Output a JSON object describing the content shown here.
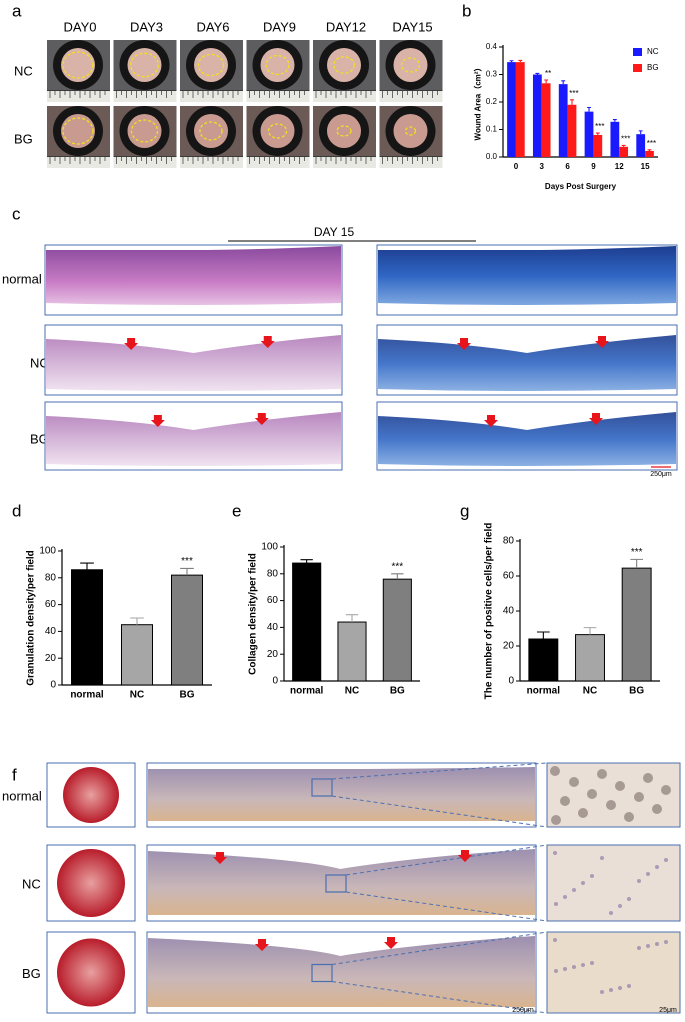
{
  "panels": {
    "a": {
      "label": "a",
      "columns": [
        "DAY0",
        "DAY3",
        "DAY6",
        "DAY9",
        "DAY12",
        "DAY15"
      ],
      "rows": [
        "NC",
        "BG"
      ]
    },
    "c": {
      "label": "c",
      "title": "DAY 15",
      "rows": [
        "normal",
        "NC",
        "BG"
      ],
      "scale_bar": "250μm"
    },
    "f": {
      "label": "f",
      "rows": [
        "normal",
        "NC",
        "BG"
      ],
      "scale_bars": [
        "250μm",
        "25μm"
      ]
    }
  },
  "chart_data": [
    {
      "type": "bar",
      "panel": "b",
      "y_label": "Wound Area（cm²）",
      "x_label": "Days Post Surgery",
      "categories": [
        "0",
        "3",
        "6",
        "9",
        "12",
        "15"
      ],
      "series": [
        {
          "name": "NC",
          "color": "#1a1aff",
          "values": [
            0.345,
            0.3,
            0.265,
            0.165,
            0.128,
            0.083
          ],
          "errors": [
            0.005,
            0.004,
            0.012,
            0.015,
            0.008,
            0.012
          ]
        },
        {
          "name": "BG",
          "color": "#ff1a1a",
          "values": [
            0.345,
            0.268,
            0.19,
            0.08,
            0.037,
            0.022
          ],
          "errors": [
            0.006,
            0.012,
            0.018,
            0.007,
            0.005,
            0.004
          ]
        }
      ],
      "significance": [
        null,
        "**",
        "***",
        "***",
        "***",
        "***"
      ],
      "significance_color": "#000000",
      "ylim": [
        0,
        0.4
      ],
      "yticks": [
        {
          "value": 0,
          "label": "0.0"
        },
        0.1,
        0.2,
        0.3,
        0.4
      ],
      "legend": "upper right"
    },
    {
      "type": "bar",
      "panel": "d",
      "y_label": "Granulation  density/per field",
      "categories": [
        "normal",
        "NC",
        "BG"
      ],
      "values": [
        86,
        45,
        82
      ],
      "errors": [
        5,
        5,
        5
      ],
      "colors": [
        "#000000",
        "#a6a6a6",
        "#7f7f7f"
      ],
      "significance": [
        null,
        null,
        "***"
      ],
      "significance_color": "#ff0000",
      "ylim": [
        0,
        100
      ],
      "yticks": [
        0,
        20,
        40,
        60,
        80,
        100
      ]
    },
    {
      "type": "bar",
      "panel": "e",
      "y_label": "Collagen density/per field",
      "categories": [
        "normal",
        "NC",
        "BG"
      ],
      "values": [
        88,
        44,
        76
      ],
      "errors": [
        2.5,
        5.5,
        4
      ],
      "colors": [
        "#000000",
        "#a6a6a6",
        "#7f7f7f"
      ],
      "significance": [
        null,
        null,
        "***"
      ],
      "significance_color": "#ff0000",
      "ylim": [
        0,
        100
      ],
      "yticks": [
        0,
        20,
        40,
        60,
        80,
        100
      ]
    },
    {
      "type": "bar",
      "panel": "g",
      "y_label": "The number of positive cells/per field",
      "categories": [
        "normal",
        "NC",
        "BG"
      ],
      "values": [
        24,
        26.5,
        64.5
      ],
      "errors": [
        4,
        4,
        5
      ],
      "colors": [
        "#000000",
        "#a6a6a6",
        "#7f7f7f"
      ],
      "significance": [
        null,
        null,
        "***"
      ],
      "significance_color": "#ff0000",
      "ylim": [
        0,
        80
      ],
      "yticks": [
        0,
        20,
        40,
        60,
        80
      ]
    }
  ]
}
